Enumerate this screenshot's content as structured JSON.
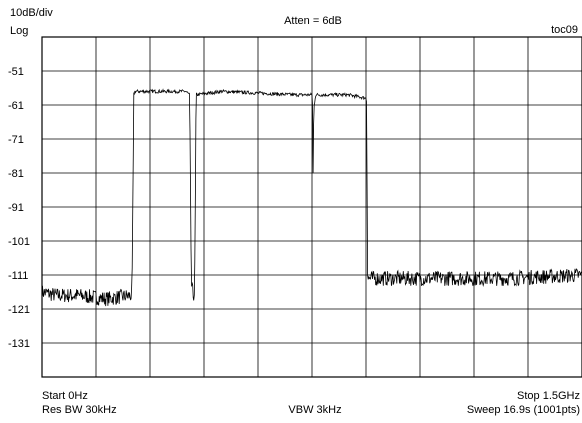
{
  "header": {
    "scale_label": "10dB/div",
    "scale_mode": "Log",
    "attenuation": "Atten = 6dB",
    "figure_id": "toc09"
  },
  "footer": {
    "start": "Start 0Hz",
    "res_bw": "Res BW 30kHz",
    "vbw": "VBW 3kHz",
    "stop": "Stop 1.5GHz",
    "sweep": "Sweep 16.9s (1001pts)"
  },
  "chart_data": {
    "type": "line",
    "title": "",
    "xlabel": "",
    "ylabel": "",
    "xlim": [
      0,
      1500
    ],
    "x_unit": "MHz",
    "ylim": [
      -141,
      -41
    ],
    "y_ticks": [
      "-51",
      "-61",
      "-71",
      "-81",
      "-91",
      "-101",
      "-111",
      "-121",
      "-131"
    ],
    "grid": true,
    "series": [
      {
        "x": [
          0,
          40,
          100,
          180,
          250,
          255,
          258,
          262,
          380,
          400,
          410,
          415,
          420,
          424,
          428,
          500,
          600,
          700,
          750,
          752,
          753,
          755,
          760,
          850,
          900,
          902,
          904,
          906,
          950,
          1050,
          1100,
          1102,
          1104,
          1106,
          1150,
          1200,
          1260,
          1262,
          1267,
          1272,
          1300,
          1380,
          1400,
          1500
        ],
        "y": [
          -116,
          -117,
          -117,
          -118,
          -117,
          -58,
          -57,
          -57,
          -57,
          -57,
          -58,
          -114,
          -117,
          -116,
          -58,
          -57,
          -57.5,
          -58,
          -58,
          -62,
          -81,
          -62,
          -58,
          -58,
          -59,
          -60,
          -110,
          -112,
          -112,
          -112,
          -112,
          -112,
          -112,
          -112,
          -112,
          -112,
          -112,
          -112,
          -112,
          -112,
          -112,
          -111.5,
          -111.5,
          -111
        ]
      }
    ]
  }
}
